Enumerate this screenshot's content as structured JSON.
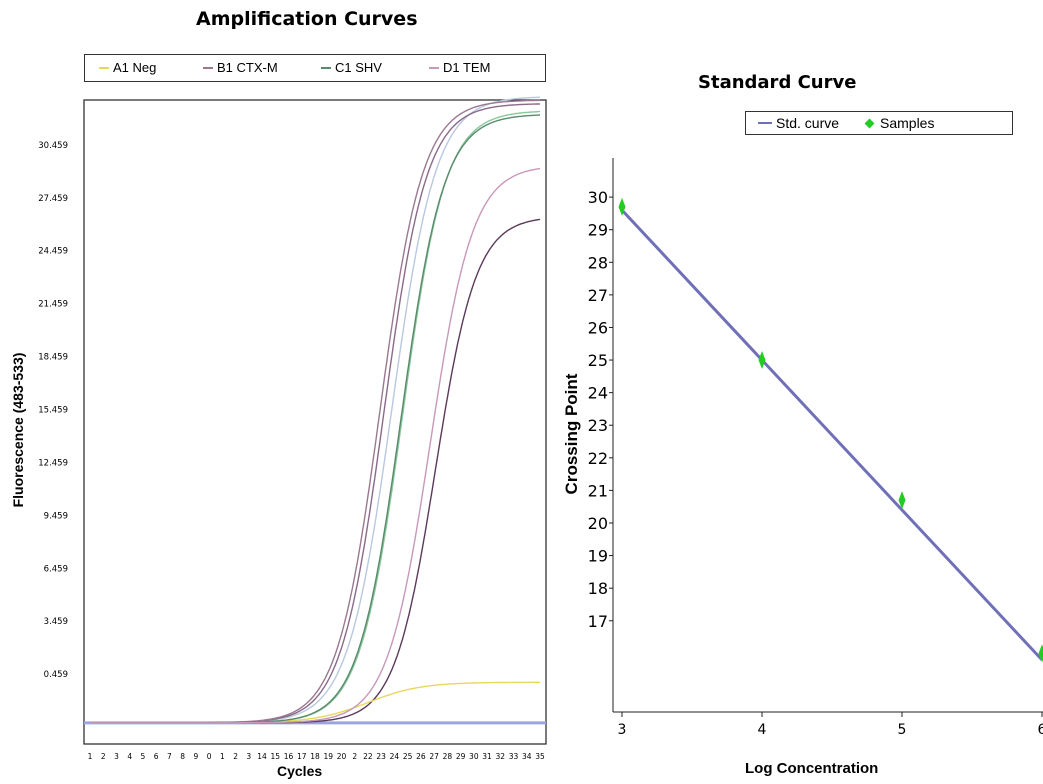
{
  "chart_data": [
    {
      "type": "line",
      "title": "Amplification Curves",
      "xlabel": "Cycles",
      "ylabel": "Fluorescence (483-533)",
      "legend_position": "top",
      "xlim": [
        1,
        35
      ],
      "ylim": [
        -3.5,
        33
      ],
      "x_ticks": [
        1,
        2,
        3,
        4,
        5,
        6,
        7,
        8,
        9,
        10,
        11,
        12,
        13,
        14,
        15,
        16,
        17,
        18,
        19,
        20,
        21,
        22,
        23,
        24,
        25,
        26,
        27,
        28,
        29,
        30,
        31,
        32,
        33,
        34,
        35
      ],
      "x_tick_labels": [
        "1",
        "2",
        "3",
        "4",
        "5",
        "6",
        "7",
        "8",
        "9",
        "0",
        "1",
        "2",
        "3",
        "14",
        "15",
        "16",
        "17",
        "18",
        "19",
        "20",
        "2",
        "22",
        "23",
        "24",
        "25",
        "26",
        "27",
        "28",
        "29",
        "30",
        "31",
        "32",
        "33",
        "34",
        "35"
      ],
      "y_ticks": [
        0.459,
        3.459,
        6.459,
        9.459,
        12.459,
        15.459,
        18.459,
        21.459,
        24.459,
        27.459,
        30.459
      ],
      "y_tick_labels": [
        "0.459",
        "3.459",
        "6.459",
        "9.459",
        "12.459",
        "15.459",
        "18.459",
        "21.459",
        "24.459",
        "27.459",
        "30.459"
      ],
      "grid": false,
      "series": [
        {
          "name": "A1 Neg",
          "color": "#e8d85a",
          "baseline": -2.3,
          "plateau": 0.0,
          "midpoint": 22,
          "slope": 0.5
        },
        {
          "name": "B1 CTX-M",
          "color": "#9a7890",
          "baseline": -2.3,
          "plateau": 33.0,
          "midpoint": 22.9,
          "slope": 0.62
        },
        {
          "name": "C1 SHV",
          "color": "#5a8a6e",
          "baseline": -2.3,
          "plateau": 32.2,
          "midpoint": 24.5,
          "slope": 0.62
        },
        {
          "name": "D1 TEM",
          "color": "#c898b8",
          "baseline": -2.3,
          "plateau": 29.3,
          "midpoint": 26.7,
          "slope": 0.62
        }
      ],
      "extra_curves": [
        {
          "color": "#b8c8e0",
          "baseline": -2.3,
          "plateau": 33.2,
          "midpoint": 23.8,
          "slope": 0.6
        },
        {
          "color": "#88c898",
          "baseline": -2.3,
          "plateau": 32.4,
          "midpoint": 24.6,
          "slope": 0.62
        },
        {
          "color": "#5a3a5a",
          "baseline": -2.3,
          "plateau": 26.4,
          "midpoint": 27.1,
          "slope": 0.65
        },
        {
          "color": "#8a6a8a",
          "baseline": -2.3,
          "plateau": 32.8,
          "midpoint": 23.2,
          "slope": 0.62
        }
      ]
    },
    {
      "type": "scatter",
      "title": "Standard Curve",
      "xlabel": "Log Concentration",
      "ylabel": "Crossing Point",
      "legend_position": "top",
      "xlim": [
        2.97,
        6.0
      ],
      "ylim": [
        14.2,
        31.2
      ],
      "x_ticks": [
        3,
        4,
        5,
        6
      ],
      "x_tick_labels": [
        "3",
        "4",
        "5",
        "6"
      ],
      "y_ticks": [
        17,
        18,
        19,
        20,
        21,
        22,
        23,
        24,
        25,
        26,
        27,
        28,
        29,
        30
      ],
      "y_tick_labels": [
        "17",
        "18",
        "19",
        "20",
        "21",
        "22",
        "23",
        "24",
        "25",
        "26",
        "27",
        "28",
        "29",
        "30"
      ],
      "grid": false,
      "series": [
        {
          "name": "Std. curve",
          "color": "#7070b8",
          "x": [
            3,
            6
          ],
          "y": [
            29.6,
            15.8
          ]
        },
        {
          "name": "Samples",
          "color": "#22cc22",
          "x": [
            3,
            4,
            5,
            6
          ],
          "y": [
            29.7,
            25.0,
            20.7,
            16.0
          ]
        }
      ]
    }
  ]
}
